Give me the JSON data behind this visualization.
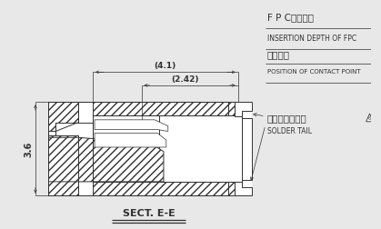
{
  "bg_color": "#e8e8e8",
  "line_color": "#303030",
  "white": "#ffffff",
  "title_bottom": "SECT. E-E",
  "label_fpc_ja": "F P C挿入深さ",
  "label_fpc_en": "INSERTION DEPTH OF FPC",
  "label_contact_ja": "接点位置",
  "label_contact_en": "POSITION OF CONTACT POINT",
  "label_solder_ja": "ソルダーテール",
  "label_solder_en": "SOLDER TAIL",
  "dim_41": "(4.1)",
  "dim_242": "(2.42)",
  "dim_36": "3.6",
  "figsize": [
    4.19,
    2.52
  ],
  "dpi": 100
}
